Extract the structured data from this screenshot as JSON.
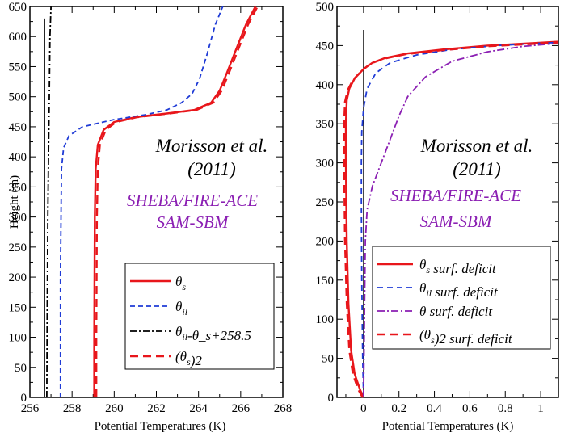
{
  "chart_data": [
    {
      "type": "line",
      "xlabel": "Potential Temperatures (K)",
      "ylabel": "Height (m)",
      "xlim": [
        256,
        268
      ],
      "ylim": [
        0,
        650
      ],
      "xticks": [
        "256",
        "258",
        "260",
        "262",
        "264",
        "266",
        "268"
      ],
      "yticks": [
        "0",
        "50",
        "100",
        "150",
        "200",
        "250",
        "300",
        "350",
        "400",
        "450",
        "500",
        "550",
        "600",
        "650"
      ],
      "grid": false,
      "legend_position": "bottom-right",
      "annotations": [
        "Morisson et al.",
        "(2011)",
        "SHEBA/FIRE-ACE",
        "SAM-SBM"
      ],
      "series": [
        {
          "name": "θ_s",
          "label_main": "θ",
          "label_sub": "s",
          "label_rest": "",
          "color": "#e8161b",
          "dash": "solid",
          "x": [
            259.05,
            259.05,
            259.08,
            259.12,
            259.22,
            259.5,
            260.0,
            261.0,
            262.5,
            263.8,
            264.6,
            265.0,
            265.35,
            265.8,
            266.25,
            266.7
          ],
          "y": [
            0,
            100,
            300,
            380,
            420,
            445,
            458,
            466,
            472,
            478,
            490,
            510,
            540,
            580,
            620,
            650
          ]
        },
        {
          "name": "θ_il",
          "label_main": "θ",
          "label_sub": "il",
          "label_rest": "",
          "color": "#1f3bd6",
          "dash": "6,4",
          "x": [
            257.45,
            257.45,
            257.5,
            257.6,
            257.85,
            258.5,
            260.0,
            261.5,
            262.5,
            263.2,
            263.7,
            264.05,
            264.4,
            264.8,
            265.15
          ],
          "y": [
            0,
            200,
            380,
            415,
            435,
            450,
            462,
            470,
            478,
            490,
            505,
            530,
            570,
            620,
            650
          ]
        },
        {
          "name": "θ_il-θ_s+258.5",
          "label_main": "θ",
          "label_sub": "il",
          "label_rest": "-θ_s+258.5",
          "color": "#000000",
          "dash": "8,3,2,3",
          "x": [
            256.8,
            256.82,
            256.85,
            256.88,
            256.9,
            256.92,
            256.95,
            257.0
          ],
          "y": [
            0,
            150,
            300,
            400,
            450,
            500,
            600,
            650
          ]
        },
        {
          "name": "(θ_s)_2",
          "label_main": "(θ",
          "label_sub": "s",
          "label_rest": ")2",
          "color": "#e8161b",
          "dash": "10,6",
          "x": [
            259.15,
            259.15,
            259.18,
            259.22,
            259.32,
            259.6,
            260.1,
            261.1,
            262.6,
            263.9,
            264.7,
            265.1,
            265.45,
            265.9,
            266.35,
            266.8
          ],
          "y": [
            0,
            100,
            300,
            380,
            420,
            445,
            458,
            466,
            472,
            478,
            490,
            510,
            540,
            580,
            620,
            650
          ]
        }
      ],
      "vertical_lines": [
        {
          "x": 256.7,
          "y0": 0,
          "y1": 630,
          "color": "#000000"
        }
      ]
    },
    {
      "type": "line",
      "xlabel": "Potential Temperatures (K)",
      "ylabel": "",
      "xlim": [
        -0.15,
        1.1
      ],
      "ylim": [
        0,
        500
      ],
      "xticks": [
        "0",
        "0.2",
        "0.4",
        "0.6",
        "0.8",
        "1"
      ],
      "yticks": [
        "0",
        "50",
        "100",
        "150",
        "200",
        "250",
        "300",
        "350",
        "400",
        "450",
        "500"
      ],
      "grid": false,
      "legend_position": "bottom-right",
      "annotations": [
        "Morisson et al.",
        "(2011)",
        "SHEBA/FIRE-ACE",
        "SAM-SBM"
      ],
      "series": [
        {
          "name": "θ_s surf. deficit",
          "label_main": "θ",
          "label_sub": "s",
          "label_rest": " surf. deficit",
          "color": "#e8161b",
          "dash": "solid",
          "x": [
            0.0,
            -0.02,
            -0.05,
            -0.07,
            -0.085,
            -0.095,
            -0.1,
            -0.1,
            -0.095,
            -0.08,
            -0.05,
            0.0,
            0.05,
            0.12,
            0.25,
            0.45,
            0.7,
            0.95,
            1.1
          ],
          "y": [
            0,
            10,
            30,
            60,
            120,
            200,
            300,
            350,
            380,
            395,
            408,
            420,
            428,
            434,
            440,
            445,
            450,
            453,
            455
          ]
        },
        {
          "name": "θ_il surf. deficit",
          "label_main": "θ",
          "label_sub": "il",
          "label_rest": " surf. deficit",
          "color": "#1f3bd6",
          "dash": "7,5",
          "x": [
            0.0,
            -0.005,
            -0.01,
            -0.012,
            -0.012,
            -0.01,
            0.0,
            0.02,
            0.07,
            0.15,
            0.3,
            0.5,
            0.75,
            1.0,
            1.1
          ],
          "y": [
            0,
            50,
            150,
            250,
            300,
            340,
            370,
            395,
            415,
            428,
            438,
            445,
            450,
            453,
            454
          ]
        },
        {
          "name": "θ surf. deficit",
          "label_main": "θ",
          "label_sub": "",
          "label_rest": " surf. deficit",
          "color": "#8b1fb3",
          "dash": "9,3,2,3",
          "x": [
            0.0,
            0.005,
            0.01,
            0.02,
            0.05,
            0.1,
            0.15,
            0.2,
            0.25,
            0.35,
            0.5,
            0.7,
            0.9,
            1.05,
            1.1
          ],
          "y": [
            0,
            100,
            200,
            240,
            270,
            300,
            330,
            360,
            385,
            410,
            430,
            442,
            449,
            452,
            453
          ]
        },
        {
          "name": "(θ_s)_2 surf. deficit",
          "label_main": "(θ",
          "label_sub": "s",
          "label_rest": ")2 surf. deficit",
          "color": "#e8161b",
          "dash": "10,6",
          "x": [
            -0.005,
            -0.03,
            -0.06,
            -0.08,
            -0.095,
            -0.105,
            -0.11,
            -0.11,
            -0.105,
            -0.09,
            -0.06,
            -0.01,
            0.04,
            0.11,
            0.24,
            0.44,
            0.69,
            0.94,
            1.1
          ],
          "y": [
            0,
            10,
            30,
            60,
            120,
            200,
            300,
            350,
            378,
            393,
            406,
            418,
            427,
            433,
            439,
            444,
            449,
            452,
            454
          ]
        }
      ],
      "vertical_lines": [
        {
          "x": 0,
          "y0": 0,
          "y1": 470,
          "color": "#000000"
        }
      ]
    }
  ]
}
